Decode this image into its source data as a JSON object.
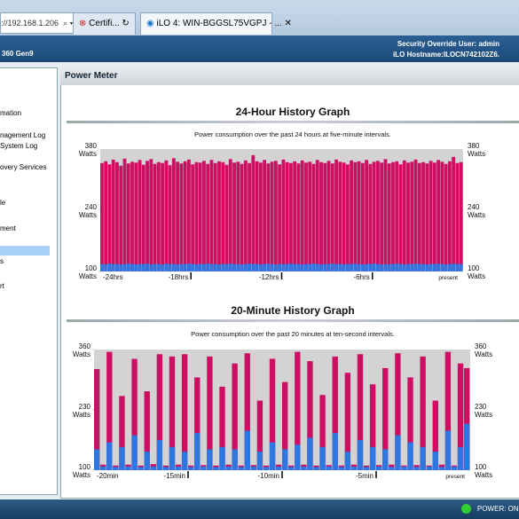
{
  "browser": {
    "address": "://192.168.1.206",
    "tabs": [
      "Certifi...",
      "iLO 4: WIN-BGGSL75VGPJ - ..."
    ]
  },
  "header": {
    "model": "360 Gen9",
    "user": "Security Override User:  admin",
    "hostname": "iLO Hostname:ILOCN742102Z6."
  },
  "nav": {
    "items": [
      "mation",
      "nagement Log",
      "System Log",
      "overy Services",
      "le",
      "ment",
      "s",
      "rt"
    ]
  },
  "panel": {
    "title": "Power Meter"
  },
  "status": {
    "power": "POWER: ON"
  },
  "chart_data": [
    {
      "type": "bar",
      "title": "24-Hour History Graph",
      "subtitle": "Power consumption over the past 24 hours at five-minute intervals.",
      "y_unit": "Watts",
      "ylim": [
        100,
        380
      ],
      "yticks": [
        100,
        240,
        380
      ],
      "xlim": [
        -24,
        0
      ],
      "xticks": [
        {
          "value": -24,
          "label": "-24hrs"
        },
        {
          "value": -18,
          "label": "-18hrs"
        },
        {
          "value": -12,
          "label": "-12hrs"
        },
        {
          "value": -6,
          "label": "-6hrs"
        },
        {
          "value": 0,
          "label": "present"
        }
      ],
      "series": [
        {
          "color": "#cc0f62",
          "values": [
            348,
            352,
            345,
            356,
            350,
            342,
            358,
            347,
            351,
            349,
            355,
            344,
            353,
            357,
            346,
            350,
            348,
            354,
            343,
            359,
            351,
            347,
            352,
            356,
            345,
            350,
            349,
            353,
            346,
            355,
            348,
            352,
            350,
            344,
            357,
            349,
            351,
            346,
            354,
            348,
            366,
            352,
            349,
            355,
            347,
            351,
            353,
            345,
            356,
            350,
            348,
            352,
            347,
            354,
            349,
            351,
            346,
            355,
            350,
            348,
            353,
            347,
            356,
            351,
            349,
            345,
            354,
            350,
            352,
            348,
            355,
            346,
            351,
            353,
            349,
            357,
            347,
            350,
            352,
            345,
            354,
            349,
            351,
            356,
            348,
            350,
            347,
            353,
            349,
            355,
            351,
            346,
            352,
            362,
            348,
            350
          ]
        },
        {
          "color": "#2e76e0",
          "values": [
            117,
            116,
            118,
            117,
            117,
            116,
            117,
            118,
            117,
            116,
            117,
            117,
            118,
            116,
            117,
            117,
            116,
            118,
            117,
            117,
            116,
            117,
            117,
            118,
            117,
            116,
            117,
            117,
            118,
            117,
            117,
            116,
            117,
            117,
            118,
            117,
            117,
            116,
            117,
            118,
            117,
            117,
            116,
            117,
            118,
            117,
            116,
            117,
            117,
            117,
            118,
            117,
            117,
            116,
            117,
            117,
            118,
            117,
            116,
            117,
            117,
            118,
            117,
            117,
            116,
            117,
            117,
            118,
            117,
            116,
            117,
            117,
            118,
            117,
            116,
            117,
            117,
            117,
            118,
            117,
            116,
            117,
            117,
            118,
            117,
            117,
            116,
            117,
            117,
            118,
            117,
            116,
            117,
            118,
            117,
            117
          ]
        }
      ]
    },
    {
      "type": "bar",
      "title": "20-Minute History Graph",
      "subtitle": "Power consumption over the past 20 minutes at ten-second intervals.",
      "y_unit": "Watts",
      "ylim": [
        100,
        360
      ],
      "yticks": [
        100,
        230,
        360
      ],
      "xlim": [
        -20,
        0
      ],
      "xticks": [
        {
          "value": -20,
          "label": "-20min"
        },
        {
          "value": -15,
          "label": "-15min"
        },
        {
          "value": -10,
          "label": "-10min"
        },
        {
          "value": -5,
          "label": "-5min"
        },
        {
          "value": 0,
          "label": "present"
        }
      ],
      "series": [
        {
          "color": "#cc0f62",
          "values": [
            318,
            112,
            355,
            110,
            260,
            112,
            340,
            110,
            270,
            113,
            350,
            110,
            345,
            112,
            350,
            110,
            300,
            111,
            345,
            110,
            280,
            112,
            330,
            110,
            352,
            111,
            250,
            110,
            340,
            112,
            290,
            110,
            355,
            112,
            335,
            110,
            262,
            111,
            345,
            110,
            310,
            112,
            350,
            110,
            285,
            111,
            320,
            112,
            352,
            110,
            300,
            111,
            345,
            110,
            250,
            112,
            355,
            110,
            330,
            320
          ]
        },
        {
          "color": "#2e76e0",
          "values": [
            145,
            108,
            160,
            107,
            150,
            108,
            175,
            107,
            140,
            108,
            165,
            107,
            150,
            108,
            140,
            107,
            180,
            108,
            145,
            107,
            150,
            108,
            145,
            107,
            185,
            108,
            140,
            107,
            160,
            108,
            145,
            107,
            155,
            108,
            170,
            107,
            150,
            108,
            180,
            107,
            140,
            108,
            165,
            107,
            150,
            108,
            145,
            107,
            175,
            108,
            160,
            107,
            150,
            108,
            140,
            107,
            185,
            108,
            150,
            200
          ]
        }
      ]
    }
  ]
}
